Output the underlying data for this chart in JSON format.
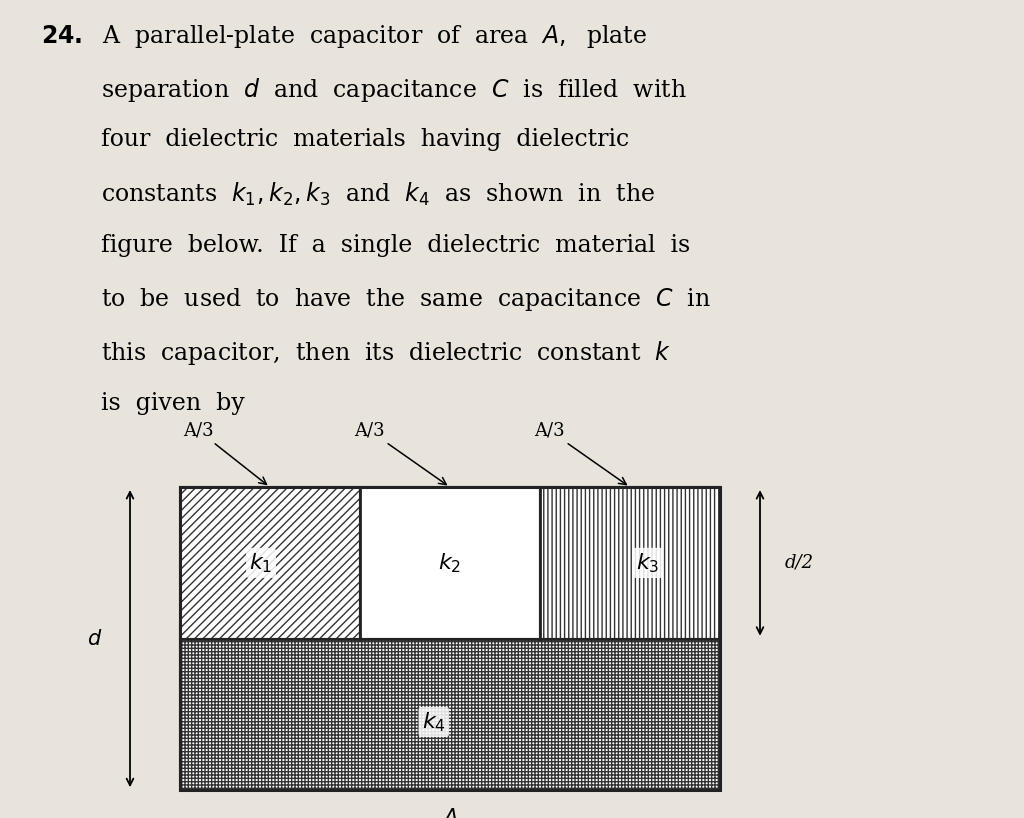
{
  "bg_color": "#e8e4dc",
  "text_lines": [
    "24.  A  parallel-plate  capacitor  of  area  A,  plate",
    "      separation d and capacitance C is filled with",
    "      four  dielectric  materials  having  dielectric",
    "      constants k₁, k₂, k₃ and k₄ as shown in the",
    "      figure below. If a single dielectric material is",
    "      to be used to have the same capacitance C in",
    "      this capacitor, then its dielectric constant k",
    "      is given by"
  ],
  "label_k1": "k₁",
  "label_k2": "k₂",
  "label_k3": "k₃",
  "label_k4": "k₄",
  "label_A": "A",
  "label_d": "d",
  "label_d2": "d/2",
  "label_A3": "A/3"
}
